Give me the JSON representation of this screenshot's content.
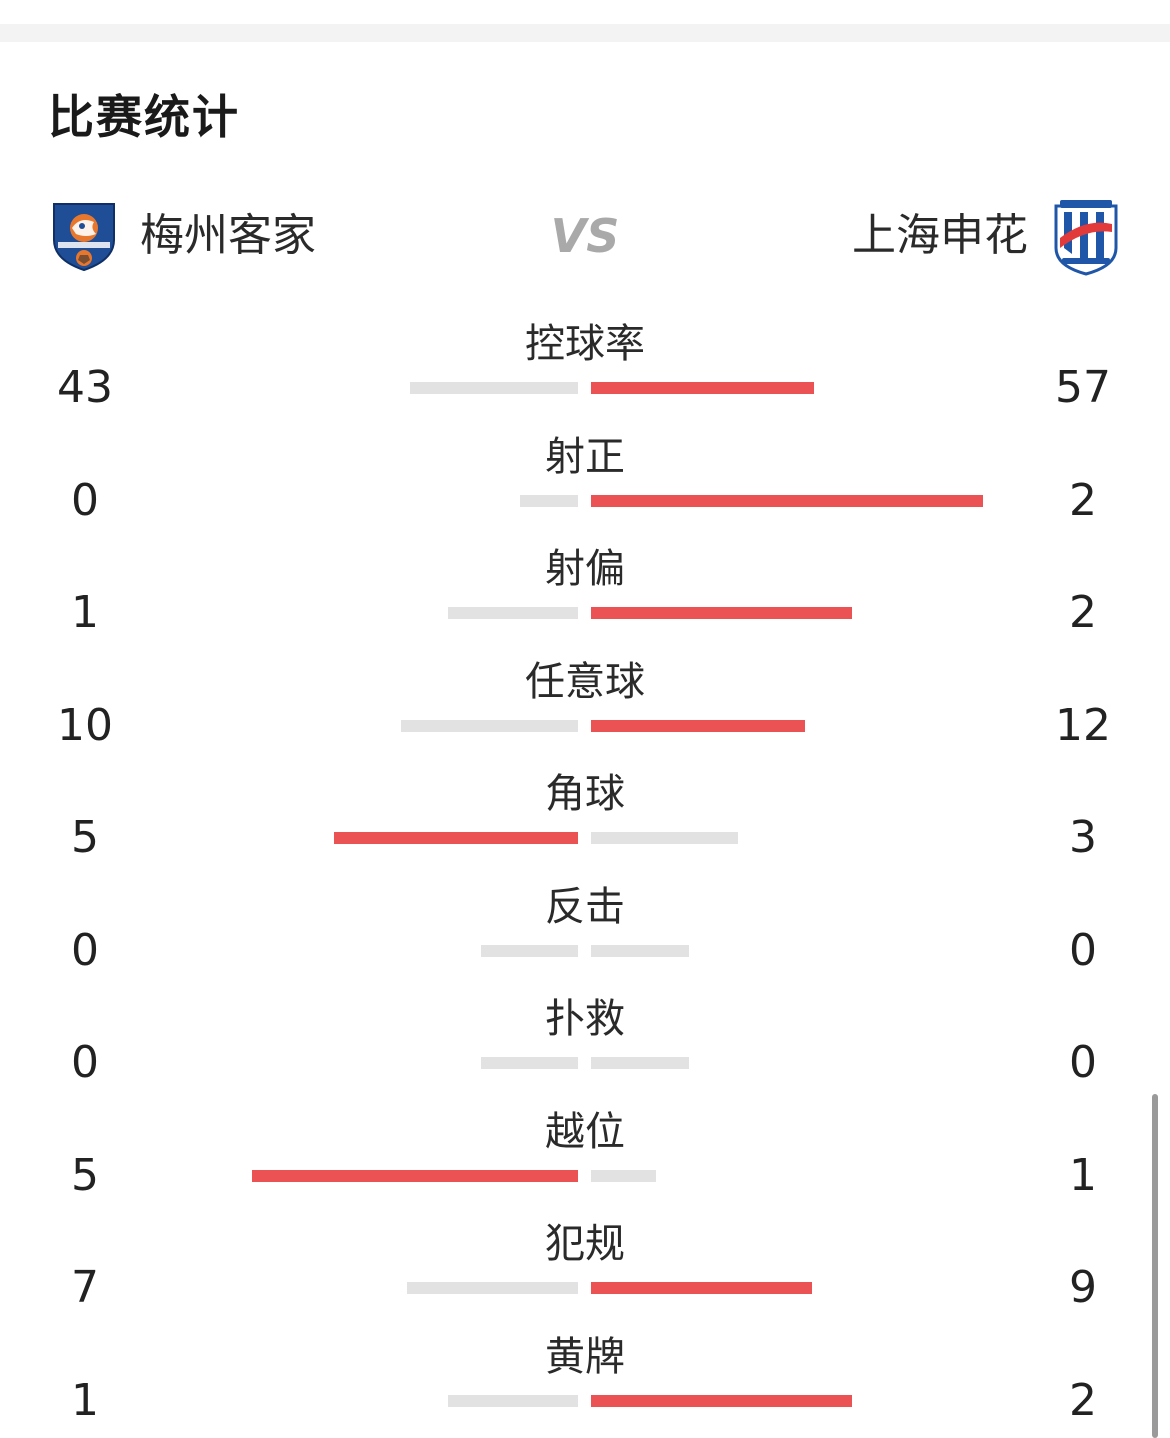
{
  "section_title": "比赛统计",
  "match": {
    "home_team": "梅州客家",
    "vs": "VS",
    "away_team": "上海申花"
  },
  "colors": {
    "leading": "#ea5254",
    "trailing": "#e2e2e2"
  },
  "stats": [
    {
      "label": "控球率",
      "home": "43",
      "away": "57"
    },
    {
      "label": "射正",
      "home": "0",
      "away": "2"
    },
    {
      "label": "射偏",
      "home": "1",
      "away": "2"
    },
    {
      "label": "任意球",
      "home": "10",
      "away": "12"
    },
    {
      "label": "角球",
      "home": "5",
      "away": "3"
    },
    {
      "label": "反击",
      "home": "0",
      "away": "0"
    },
    {
      "label": "扑救",
      "home": "0",
      "away": "0"
    },
    {
      "label": "越位",
      "home": "5",
      "away": "1"
    },
    {
      "label": "犯规",
      "home": "7",
      "away": "9"
    },
    {
      "label": "黄牌",
      "home": "1",
      "away": "2"
    }
  ]
}
